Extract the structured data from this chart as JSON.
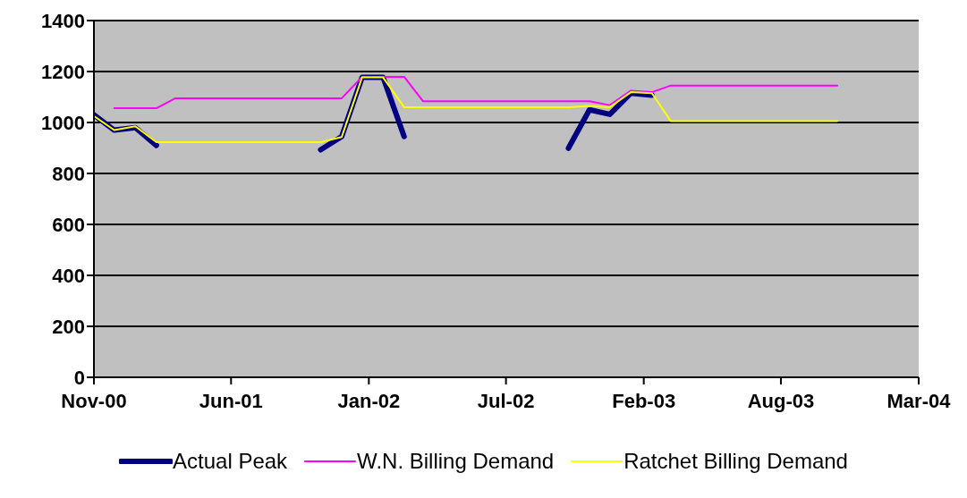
{
  "chart_data": {
    "type": "line",
    "x": [
      "2000-11-22",
      "2000-12-22",
      "2001-01-22",
      "2001-02-22",
      "2001-03-22",
      "2001-04-22",
      "2001-05-22",
      "2001-06-22",
      "2001-07-22",
      "2001-08-22",
      "2001-09-22",
      "2001-10-22",
      "2001-11-22",
      "2001-12-22",
      "2002-01-22",
      "2002-02-22",
      "2002-03-22",
      "2002-04-22",
      "2002-05-22",
      "2002-06-22",
      "2002-07-22",
      "2002-08-22",
      "2002-09-22",
      "2002-10-22",
      "2002-11-22",
      "2002-12-22",
      "2003-01-22",
      "2003-02-22",
      "2003-03-22",
      "2003-04-22",
      "2003-05-22",
      "2003-06-22",
      "2003-07-22",
      "2003-08-22",
      "2003-09-22",
      "2003-10-22",
      "2003-11-22"
    ],
    "series": [
      {
        "name": "Actual Peak",
        "color": "#000080",
        "values": [
          1030,
          970,
          980,
          910,
          null,
          null,
          null,
          null,
          null,
          null,
          null,
          893,
          945,
          1177,
          1177,
          945,
          null,
          null,
          null,
          null,
          null,
          null,
          null,
          899,
          1050,
          1032,
          1115,
          1107,
          null,
          null,
          null,
          null,
          null,
          null,
          null,
          null,
          null
        ]
      },
      {
        "name": "W.N. Billing Demand",
        "color": "#ff00ff",
        "values": [
          null,
          1056,
          1056,
          1056,
          1095,
          1095,
          1095,
          1095,
          1095,
          1095,
          1095,
          1095,
          1095,
          1179,
          1179,
          1179,
          1083,
          1083,
          1083,
          1083,
          1083,
          1083,
          1083,
          1083,
          1083,
          1068,
          1125,
          1119,
          1145,
          1145,
          1145,
          1145,
          1145,
          1145,
          1145,
          1145,
          1145
        ]
      },
      {
        "name": "Ratchet Billing Demand",
        "color": "#ffff00",
        "values": [
          1025,
          970,
          985,
          923,
          923,
          923,
          923,
          923,
          923,
          923,
          923,
          923,
          943,
          1177,
          1177,
          1060,
          1060,
          1060,
          1060,
          1060,
          1060,
          1060,
          1060,
          1060,
          1065,
          1060,
          1119,
          1115,
          1005,
          1005,
          1005,
          1005,
          1005,
          1005,
          1005,
          1005,
          1005
        ]
      }
    ],
    "xlim": [
      "2000-11-22",
      "2004-03-21"
    ],
    "xticks": [
      {
        "value": "2000-11-22",
        "label": "Nov-00"
      },
      {
        "value": "2001-06-12",
        "label": "Jun-01"
      },
      {
        "value": "2002-01-01",
        "label": "Jan-02"
      },
      {
        "value": "2002-07-22",
        "label": "Jul-02"
      },
      {
        "value": "2003-02-10",
        "label": "Feb-03"
      },
      {
        "value": "2003-08-31",
        "label": "Aug-03"
      },
      {
        "value": "2004-03-21",
        "label": "Mar-04"
      }
    ],
    "ylim": [
      0,
      1400
    ],
    "yticks": [
      0,
      200,
      400,
      600,
      800,
      1000,
      1200,
      1400
    ],
    "grid": "y",
    "legend": "bottom",
    "marker": "none",
    "line_style": "solid"
  }
}
